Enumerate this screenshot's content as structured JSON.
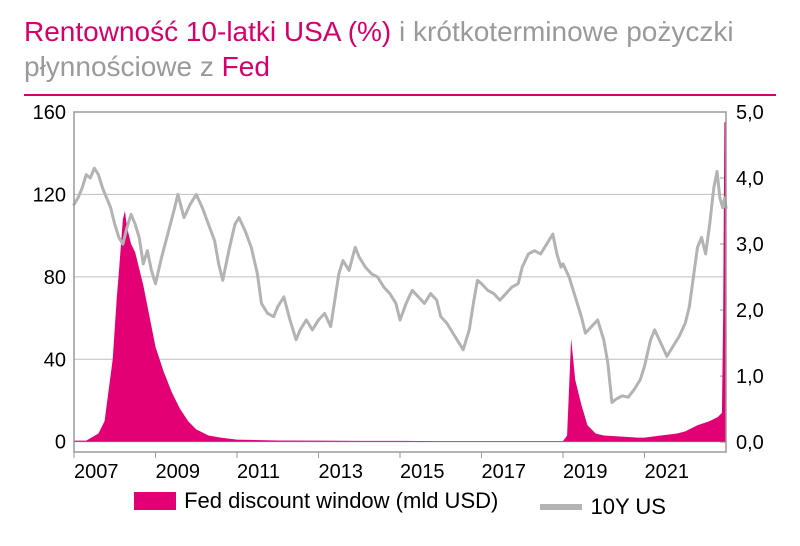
{
  "title_prefix": "Rentowność 10-latki USA (%)",
  "title_mid_grey": " i krótkoterminowe pożyczki płynnościowe z ",
  "title_suffix": "Fed",
  "rule_color": "#d6006c",
  "chart": {
    "type": "dual-axis-line-area",
    "background_color": "#ffffff",
    "plot_border_color": "#9a9a9a",
    "plot_border_width": 1.5,
    "grid_color": "#bfbfbf",
    "grid_width": 1,
    "x": {
      "min": 2007,
      "max": 2023,
      "ticks": [
        2007,
        2009,
        2011,
        2013,
        2015,
        2017,
        2019,
        2021
      ],
      "label_fontsize": 20
    },
    "y_left": {
      "label": "",
      "min": -5,
      "max": 160,
      "ticks": [
        0,
        40,
        80,
        120,
        160
      ],
      "label_fontsize": 20
    },
    "y_right": {
      "label": "",
      "min": -0.15,
      "max": 5.0,
      "ticks": [
        "0,0",
        "1,0",
        "2,0",
        "3,0",
        "4,0",
        "5,0"
      ],
      "tick_values": [
        0,
        1,
        2,
        3,
        4,
        5
      ],
      "label_fontsize": 20
    },
    "series_area": {
      "name": "Fed discount window (mld USD)",
      "axis": "left",
      "fill_color": "#e20074",
      "stroke_color": "#e20074",
      "opacity": 1.0,
      "data": [
        [
          2007.0,
          0.5
        ],
        [
          2007.3,
          0.5
        ],
        [
          2007.6,
          4
        ],
        [
          2007.75,
          10
        ],
        [
          2007.85,
          25
        ],
        [
          2007.95,
          40
        ],
        [
          2008.0,
          55
        ],
        [
          2008.05,
          70
        ],
        [
          2008.1,
          82
        ],
        [
          2008.15,
          95
        ],
        [
          2008.2,
          108
        ],
        [
          2008.25,
          112
        ],
        [
          2008.3,
          104
        ],
        [
          2008.4,
          96
        ],
        [
          2008.5,
          92
        ],
        [
          2008.6,
          84
        ],
        [
          2008.7,
          76
        ],
        [
          2008.8,
          66
        ],
        [
          2008.9,
          56
        ],
        [
          2009.0,
          46
        ],
        [
          2009.2,
          34
        ],
        [
          2009.4,
          24
        ],
        [
          2009.6,
          16
        ],
        [
          2009.8,
          10
        ],
        [
          2010.0,
          6
        ],
        [
          2010.3,
          3
        ],
        [
          2010.6,
          2
        ],
        [
          2011.0,
          1
        ],
        [
          2012.0,
          0.6
        ],
        [
          2013.0,
          0.5
        ],
        [
          2014.0,
          0.4
        ],
        [
          2015.0,
          0.4
        ],
        [
          2016.0,
          0.3
        ],
        [
          2017.0,
          0.3
        ],
        [
          2018.0,
          0.3
        ],
        [
          2018.8,
          0.3
        ],
        [
          2019.0,
          0.3
        ],
        [
          2019.1,
          3
        ],
        [
          2019.2,
          50
        ],
        [
          2019.3,
          30
        ],
        [
          2019.45,
          18
        ],
        [
          2019.6,
          8
        ],
        [
          2019.8,
          4
        ],
        [
          2020.0,
          3
        ],
        [
          2020.4,
          2.5
        ],
        [
          2020.8,
          2
        ],
        [
          2021.0,
          2
        ],
        [
          2021.4,
          3
        ],
        [
          2021.8,
          4
        ],
        [
          2022.0,
          5
        ],
        [
          2022.3,
          8
        ],
        [
          2022.6,
          10
        ],
        [
          2022.8,
          12
        ],
        [
          2022.9,
          14
        ],
        [
          2022.93,
          60
        ],
        [
          2022.96,
          155
        ],
        [
          2023.0,
          155
        ]
      ]
    },
    "series_line": {
      "name": "10Y US",
      "axis": "right",
      "stroke_color": "#b3b3b3",
      "stroke_width": 3,
      "data": [
        [
          2007.0,
          3.6
        ],
        [
          2007.1,
          3.7
        ],
        [
          2007.2,
          3.85
        ],
        [
          2007.3,
          4.05
        ],
        [
          2007.4,
          4.0
        ],
        [
          2007.5,
          4.15
        ],
        [
          2007.6,
          4.05
        ],
        [
          2007.7,
          3.85
        ],
        [
          2007.8,
          3.7
        ],
        [
          2007.9,
          3.55
        ],
        [
          2008.0,
          3.3
        ],
        [
          2008.1,
          3.1
        ],
        [
          2008.2,
          3.0
        ],
        [
          2008.3,
          3.25
        ],
        [
          2008.4,
          3.45
        ],
        [
          2008.5,
          3.3
        ],
        [
          2008.6,
          3.1
        ],
        [
          2008.7,
          2.7
        ],
        [
          2008.8,
          2.9
        ],
        [
          2008.9,
          2.6
        ],
        [
          2009.0,
          2.4
        ],
        [
          2009.15,
          2.8
        ],
        [
          2009.3,
          3.15
        ],
        [
          2009.45,
          3.5
        ],
        [
          2009.55,
          3.75
        ],
        [
          2009.7,
          3.4
        ],
        [
          2009.85,
          3.6
        ],
        [
          2010.0,
          3.75
        ],
        [
          2010.15,
          3.55
        ],
        [
          2010.3,
          3.3
        ],
        [
          2010.45,
          3.05
        ],
        [
          2010.55,
          2.7
        ],
        [
          2010.65,
          2.45
        ],
        [
          2010.8,
          2.9
        ],
        [
          2010.95,
          3.3
        ],
        [
          2011.05,
          3.4
        ],
        [
          2011.2,
          3.2
        ],
        [
          2011.35,
          2.95
        ],
        [
          2011.5,
          2.55
        ],
        [
          2011.6,
          2.1
        ],
        [
          2011.75,
          1.95
        ],
        [
          2011.9,
          1.9
        ],
        [
          2012.0,
          2.05
        ],
        [
          2012.15,
          2.2
        ],
        [
          2012.3,
          1.85
        ],
        [
          2012.45,
          1.55
        ],
        [
          2012.55,
          1.7
        ],
        [
          2012.7,
          1.85
        ],
        [
          2012.85,
          1.7
        ],
        [
          2013.0,
          1.85
        ],
        [
          2013.15,
          1.95
        ],
        [
          2013.3,
          1.75
        ],
        [
          2013.4,
          2.15
        ],
        [
          2013.5,
          2.55
        ],
        [
          2013.6,
          2.75
        ],
        [
          2013.75,
          2.6
        ],
        [
          2013.9,
          2.95
        ],
        [
          2014.0,
          2.8
        ],
        [
          2014.15,
          2.65
        ],
        [
          2014.3,
          2.55
        ],
        [
          2014.45,
          2.5
        ],
        [
          2014.6,
          2.35
        ],
        [
          2014.75,
          2.25
        ],
        [
          2014.9,
          2.1
        ],
        [
          2015.0,
          1.85
        ],
        [
          2015.15,
          2.1
        ],
        [
          2015.3,
          2.3
        ],
        [
          2015.45,
          2.2
        ],
        [
          2015.6,
          2.1
        ],
        [
          2015.75,
          2.25
        ],
        [
          2015.9,
          2.15
        ],
        [
          2016.0,
          1.9
        ],
        [
          2016.15,
          1.8
        ],
        [
          2016.3,
          1.65
        ],
        [
          2016.45,
          1.5
        ],
        [
          2016.55,
          1.4
        ],
        [
          2016.7,
          1.7
        ],
        [
          2016.8,
          2.1
        ],
        [
          2016.9,
          2.45
        ],
        [
          2017.0,
          2.4
        ],
        [
          2017.15,
          2.3
        ],
        [
          2017.3,
          2.25
        ],
        [
          2017.45,
          2.15
        ],
        [
          2017.6,
          2.25
        ],
        [
          2017.75,
          2.35
        ],
        [
          2017.9,
          2.4
        ],
        [
          2018.0,
          2.65
        ],
        [
          2018.15,
          2.85
        ],
        [
          2018.3,
          2.9
        ],
        [
          2018.45,
          2.85
        ],
        [
          2018.6,
          3.0
        ],
        [
          2018.75,
          3.15
        ],
        [
          2018.85,
          2.85
        ],
        [
          2018.95,
          2.65
        ],
        [
          2019.0,
          2.7
        ],
        [
          2019.15,
          2.5
        ],
        [
          2019.3,
          2.2
        ],
        [
          2019.45,
          1.9
        ],
        [
          2019.55,
          1.65
        ],
        [
          2019.7,
          1.75
        ],
        [
          2019.85,
          1.85
        ],
        [
          2020.0,
          1.55
        ],
        [
          2020.1,
          1.2
        ],
        [
          2020.2,
          0.6
        ],
        [
          2020.3,
          0.65
        ],
        [
          2020.45,
          0.7
        ],
        [
          2020.6,
          0.68
        ],
        [
          2020.75,
          0.8
        ],
        [
          2020.9,
          0.95
        ],
        [
          2021.0,
          1.15
        ],
        [
          2021.15,
          1.55
        ],
        [
          2021.25,
          1.7
        ],
        [
          2021.4,
          1.5
        ],
        [
          2021.55,
          1.3
        ],
        [
          2021.7,
          1.45
        ],
        [
          2021.85,
          1.6
        ],
        [
          2022.0,
          1.8
        ],
        [
          2022.1,
          2.05
        ],
        [
          2022.2,
          2.5
        ],
        [
          2022.3,
          2.95
        ],
        [
          2022.4,
          3.1
        ],
        [
          2022.5,
          2.85
        ],
        [
          2022.6,
          3.3
        ],
        [
          2022.7,
          3.85
        ],
        [
          2022.78,
          4.1
        ],
        [
          2022.85,
          3.7
        ],
        [
          2022.92,
          3.55
        ],
        [
          2022.97,
          3.7
        ],
        [
          2023.0,
          3.55
        ]
      ]
    }
  },
  "legend": {
    "items": [
      {
        "type": "box",
        "color": "#e20074",
        "label": "Fed discount window (mld USD)"
      },
      {
        "type": "line",
        "color": "#b3b3b3",
        "label": "10Y US"
      }
    ],
    "fontsize": 22
  }
}
